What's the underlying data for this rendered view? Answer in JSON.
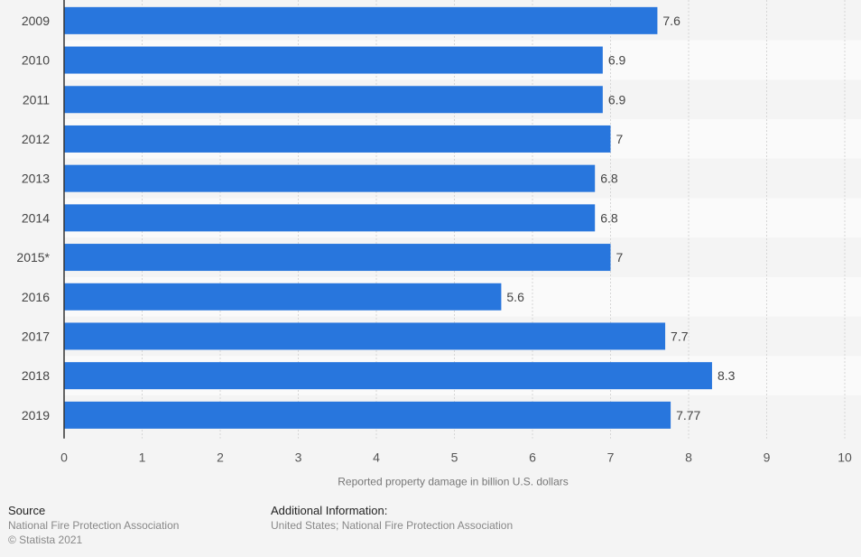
{
  "chart_data": {
    "type": "bar",
    "orientation": "horizontal",
    "title": "",
    "categories": [
      "2009",
      "2010",
      "2011",
      "2012",
      "2013",
      "2014",
      "2015*",
      "2016",
      "2017",
      "2018",
      "2019"
    ],
    "values": [
      7.6,
      6.9,
      6.9,
      7,
      6.8,
      6.8,
      7,
      5.6,
      7.7,
      8.3,
      7.77
    ],
    "data_labels": [
      "7.6",
      "6.9",
      "6.9",
      "7",
      "6.8",
      "6.8",
      "7",
      "5.6",
      "7.7",
      "8.3",
      "7.77"
    ],
    "xlabel": "Reported property damage in billion U.S. dollars",
    "ylabel": "",
    "xlim": [
      0,
      10
    ],
    "xticks": [
      "0",
      "1",
      "2",
      "3",
      "4",
      "5",
      "6",
      "7",
      "8",
      "9",
      "10"
    ],
    "grid": true,
    "bar_color": "#2876dd"
  },
  "footer": {
    "source_heading": "Source",
    "source_text": "National Fire Protection Association",
    "copyright": "© Statista 2021",
    "additional_heading": "Additional Information:",
    "additional_text": "United States; National Fire Protection Association"
  }
}
